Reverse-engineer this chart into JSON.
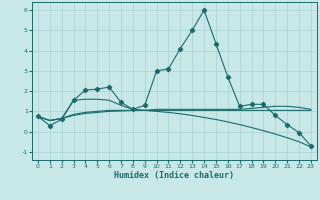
{
  "xlabel": "Humidex (Indice chaleur)",
  "x": [
    0,
    1,
    2,
    3,
    4,
    5,
    6,
    7,
    8,
    9,
    10,
    11,
    12,
    13,
    14,
    15,
    16,
    17,
    18,
    19,
    20,
    21,
    22,
    23
  ],
  "line_main": [
    0.75,
    0.3,
    0.6,
    1.55,
    2.05,
    2.1,
    2.2,
    1.45,
    1.1,
    1.3,
    3.0,
    3.1,
    4.1,
    5.0,
    6.0,
    4.35,
    2.7,
    1.25,
    1.35,
    1.35,
    0.8,
    0.35,
    -0.05,
    -0.7
  ],
  "line_curve1": [
    0.75,
    0.55,
    0.65,
    1.55,
    1.6,
    1.6,
    1.55,
    1.3,
    1.1,
    1.05,
    1.1,
    1.1,
    1.1,
    1.1,
    1.1,
    1.1,
    1.1,
    1.1,
    1.15,
    1.2,
    1.25,
    1.25,
    1.2,
    1.1
  ],
  "line_curve2": [
    0.75,
    0.55,
    0.65,
    0.8,
    0.9,
    0.95,
    1.0,
    1.02,
    1.05,
    1.05,
    1.0,
    0.95,
    0.88,
    0.8,
    0.7,
    0.6,
    0.48,
    0.35,
    0.2,
    0.05,
    -0.12,
    -0.3,
    -0.5,
    -0.75
  ],
  "line_curve3": [
    0.75,
    0.55,
    0.65,
    0.85,
    0.95,
    1.0,
    1.05,
    1.05,
    1.05,
    1.05,
    1.05,
    1.05,
    1.05,
    1.05,
    1.05,
    1.05,
    1.05,
    1.05,
    1.05,
    1.05,
    1.05,
    1.05,
    1.05,
    1.05
  ],
  "bg_color": "#c8e8e8",
  "line_color": "#1a6b6b",
  "grid_color": "#a8d0d0",
  "ylim": [
    -1.4,
    6.4
  ],
  "yticks": [
    -1,
    0,
    1,
    2,
    3,
    4,
    5,
    6
  ],
  "xticks": [
    0,
    1,
    2,
    3,
    4,
    5,
    6,
    7,
    8,
    9,
    10,
    11,
    12,
    13,
    14,
    15,
    16,
    17,
    18,
    19,
    20,
    21,
    22,
    23
  ]
}
